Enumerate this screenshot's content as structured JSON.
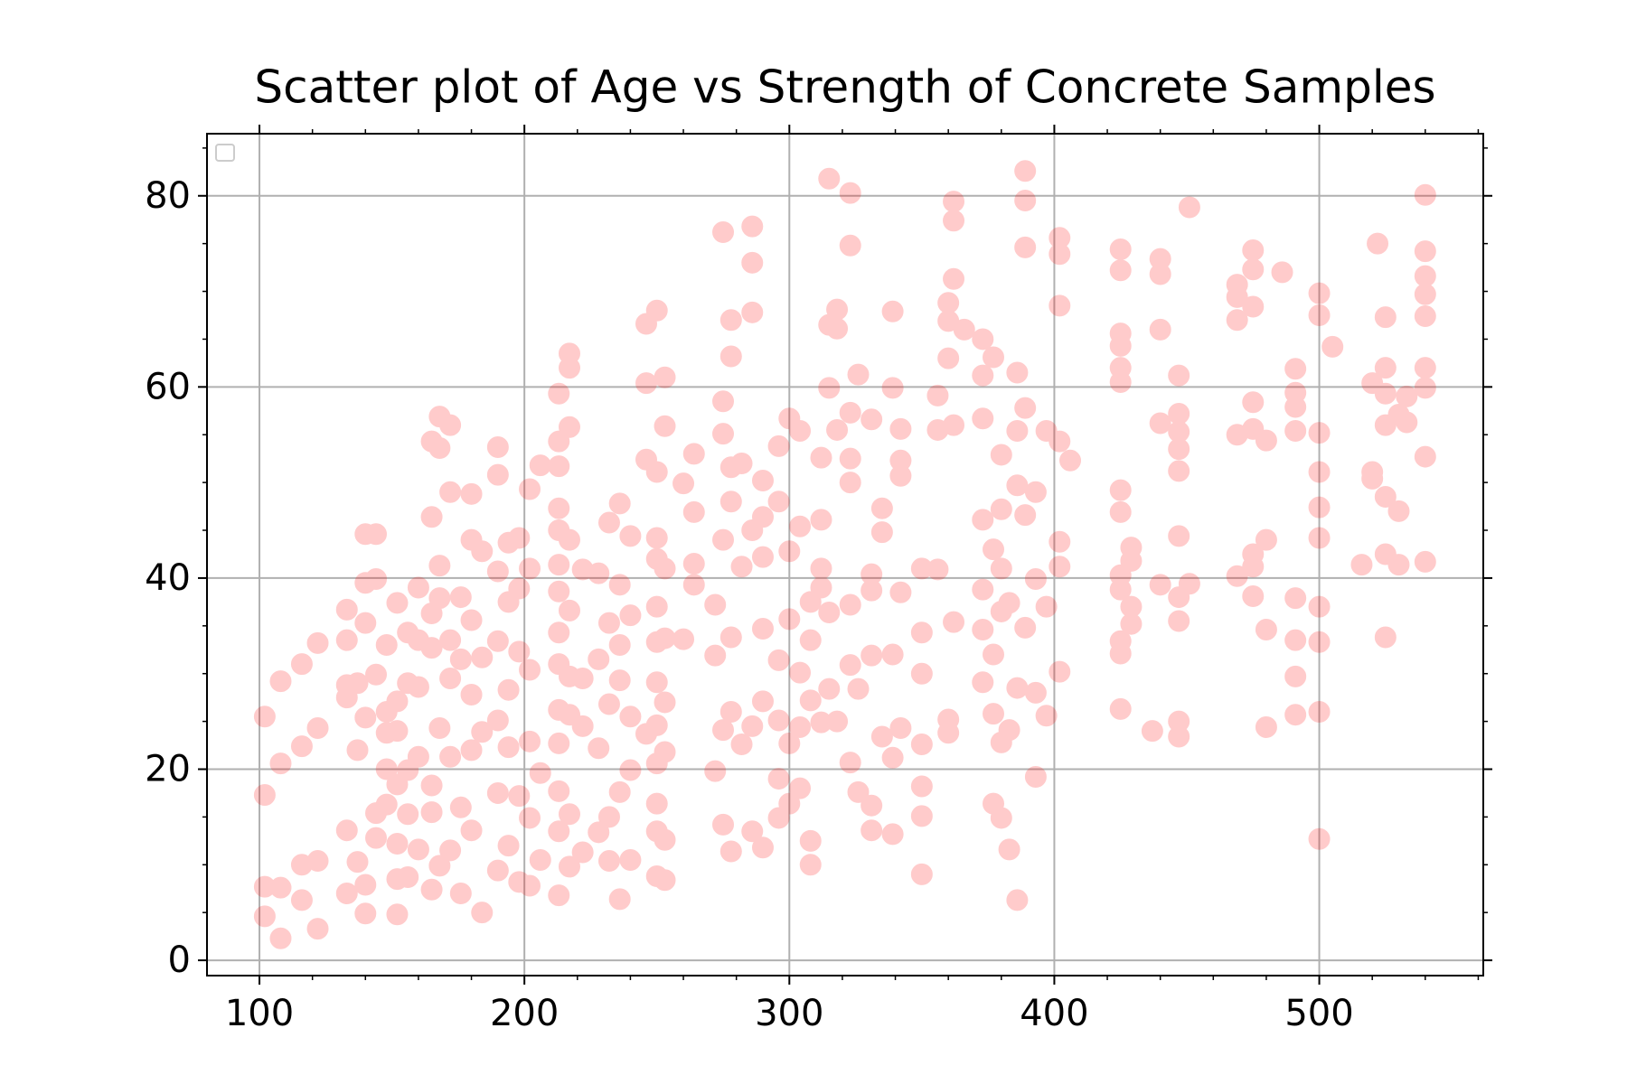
{
  "chart_data": {
    "type": "scatter",
    "title": "Scatter plot of Age vs Strength of Concrete Samples",
    "color": "#ff0000",
    "alpha": 0.2,
    "grid": true,
    "legend": "upper left",
    "xlim": [
      80.2,
      561.9
    ],
    "ylim": [
      -1.6,
      86.5
    ],
    "xticks": [
      100,
      200,
      300,
      400,
      500
    ],
    "yticks": [
      0,
      20,
      40,
      60,
      80
    ],
    "xminorticks": [
      120,
      140,
      160,
      180,
      220,
      240,
      260,
      280,
      320,
      340,
      360,
      380,
      420,
      440,
      460,
      480,
      520,
      540,
      560
    ],
    "yminorticks": [
      5,
      10,
      15,
      25,
      30,
      35,
      45,
      50,
      55,
      65,
      70,
      75,
      85
    ],
    "x": [
      102,
      102,
      102,
      102,
      108,
      108,
      108,
      108,
      116,
      116,
      116,
      116,
      122,
      122,
      122,
      122,
      133,
      133,
      133,
      133,
      133,
      133,
      137,
      137,
      137,
      140,
      140,
      140,
      140,
      140,
      140,
      144,
      144,
      144,
      144,
      144,
      148,
      148,
      148,
      148,
      148,
      152,
      152,
      152,
      152,
      152,
      152,
      152,
      156,
      156,
      156,
      156,
      156,
      160,
      160,
      160,
      160,
      160,
      165,
      165,
      165,
      165,
      165,
      165,
      165,
      168,
      168,
      168,
      168,
      168,
      168,
      172,
      172,
      172,
      172,
      172,
      172,
      176,
      176,
      176,
      176,
      180,
      180,
      180,
      180,
      180,
      180,
      184,
      184,
      184,
      184,
      190,
      190,
      190,
      190,
      190,
      190,
      190,
      194,
      194,
      194,
      194,
      194,
      198,
      198,
      198,
      198,
      198,
      202,
      202,
      202,
      202,
      202,
      202,
      206,
      206,
      206,
      213,
      213,
      213,
      213,
      213,
      213,
      213,
      213,
      213,
      213,
      213,
      213,
      213,
      213,
      217,
      217,
      217,
      217,
      217,
      217,
      217,
      217,
      217,
      222,
      222,
      222,
      222,
      228,
      228,
      228,
      228,
      232,
      232,
      232,
      232,
      232,
      236,
      236,
      236,
      236,
      236,
      236,
      240,
      240,
      240,
      240,
      240,
      246,
      246,
      246,
      246,
      250,
      250,
      250,
      250,
      250,
      250,
      250,
      250,
      250,
      250,
      250,
      250,
      253,
      253,
      253,
      253,
      253,
      253,
      253,
      253,
      260,
      260,
      264,
      264,
      264,
      264,
      272,
      272,
      272,
      275,
      275,
      275,
      275,
      275,
      275,
      278,
      278,
      278,
      278,
      278,
      278,
      278,
      282,
      282,
      282,
      286,
      286,
      286,
      286,
      286,
      286,
      290,
      290,
      290,
      290,
      290,
      290,
      296,
      296,
      296,
      296,
      296,
      296,
      300,
      300,
      300,
      300,
      300,
      304,
      304,
      304,
      304,
      304,
      308,
      308,
      308,
      308,
      308,
      312,
      312,
      312,
      312,
      312,
      315,
      315,
      315,
      315,
      315,
      318,
      318,
      318,
      318,
      323,
      323,
      323,
      323,
      323,
      323,
      323,
      323,
      326,
      326,
      326,
      331,
      331,
      331,
      331,
      331,
      331,
      335,
      335,
      335,
      339,
      339,
      339,
      339,
      339,
      342,
      342,
      342,
      342,
      342,
      350,
      350,
      350,
      350,
      350,
      350,
      350,
      356,
      356,
      356,
      360,
      360,
      360,
      360,
      360,
      362,
      362,
      362,
      362,
      362,
      366,
      373,
      373,
      373,
      373,
      373,
      373,
      373,
      377,
      377,
      377,
      377,
      377,
      380,
      380,
      380,
      380,
      380,
      380,
      383,
      383,
      383,
      386,
      386,
      386,
      386,
      386,
      389,
      389,
      389,
      389,
      389,
      389,
      393,
      393,
      393,
      393,
      397,
      397,
      397,
      402,
      402,
      402,
      402,
      402,
      402,
      402,
      406,
      425,
      425,
      425,
      425,
      425,
      425,
      425,
      425,
      425,
      425,
      425,
      425,
      425,
      429,
      429,
      429,
      429,
      437,
      440,
      440,
      440,
      440,
      440,
      447,
      447,
      447,
      447,
      447,
      447,
      447,
      447,
      447,
      447,
      451,
      451,
      469,
      469,
      469,
      469,
      469,
      475,
      475,
      475,
      475,
      475,
      475,
      475,
      475,
      480,
      480,
      480,
      480,
      486,
      491,
      491,
      491,
      491,
      491,
      491,
      491,
      491,
      500,
      500,
      500,
      500,
      500,
      500,
      500,
      500,
      500,
      500,
      505,
      516,
      520,
      520,
      520,
      522,
      525,
      525,
      525,
      525,
      525,
      525,
      525,
      530,
      530,
      530,
      533,
      533,
      540,
      540,
      540,
      540,
      540,
      540,
      540,
      540,
      540
    ],
    "values": [
      25.5,
      17.3,
      7.7,
      4.6,
      2.3,
      7.6,
      20.6,
      29.2,
      10.0,
      22.4,
      6.3,
      31.0,
      3.3,
      10.4,
      24.3,
      33.2,
      33.5,
      36.7,
      13.6,
      27.5,
      7.0,
      28.8,
      29.0,
      22.0,
      10.3,
      35.3,
      44.6,
      39.5,
      7.9,
      4.9,
      25.4,
      44.6,
      29.9,
      15.4,
      12.8,
      39.9,
      26.0,
      23.8,
      33.0,
      20.0,
      16.3,
      37.4,
      24.0,
      27.1,
      18.4,
      12.2,
      4.8,
      8.5,
      29.0,
      34.3,
      15.3,
      19.9,
      8.7,
      39.0,
      33.5,
      28.6,
      11.6,
      21.3,
      54.3,
      36.3,
      15.5,
      46.4,
      32.7,
      18.3,
      7.4,
      56.9,
      53.6,
      41.3,
      37.9,
      24.3,
      9.9,
      56.0,
      49.0,
      33.5,
      29.5,
      21.3,
      11.5,
      38.0,
      31.5,
      16.0,
      7.0,
      48.8,
      44.0,
      35.6,
      27.8,
      22.0,
      13.6,
      5.0,
      23.9,
      31.7,
      42.8,
      53.7,
      50.8,
      40.7,
      33.4,
      25.1,
      17.5,
      9.4,
      43.7,
      37.5,
      28.3,
      22.3,
      12.0,
      44.2,
      32.3,
      17.2,
      8.2,
      38.9,
      49.3,
      41.0,
      30.4,
      22.9,
      14.9,
      7.8,
      51.8,
      19.6,
      10.5,
      59.3,
      54.3,
      51.7,
      47.3,
      45.0,
      41.4,
      38.6,
      34.3,
      31.0,
      26.2,
      17.7,
      13.5,
      6.8,
      22.7,
      63.5,
      62.0,
      55.8,
      44.0,
      36.6,
      29.7,
      25.7,
      15.3,
      9.8,
      40.9,
      24.5,
      11.3,
      29.5,
      40.5,
      31.5,
      22.2,
      13.4,
      45.8,
      35.3,
      26.8,
      15.0,
      10.4,
      47.8,
      39.3,
      29.3,
      17.6,
      6.4,
      33.0,
      44.4,
      36.1,
      25.5,
      19.9,
      10.5,
      66.6,
      60.4,
      52.4,
      23.7,
      68.0,
      51.1,
      44.2,
      42.0,
      37.0,
      33.3,
      29.1,
      24.6,
      20.6,
      13.5,
      8.8,
      16.4,
      61.0,
      55.9,
      41.0,
      33.7,
      27.0,
      21.8,
      12.6,
      8.4,
      49.9,
      33.6,
      53.0,
      41.5,
      46.9,
      39.3,
      31.9,
      37.2,
      19.8,
      76.2,
      58.5,
      55.1,
      44.0,
      24.1,
      14.2,
      67.0,
      63.2,
      51.6,
      48.0,
      33.8,
      26.0,
      11.4,
      52.0,
      22.6,
      41.2,
      76.8,
      73.0,
      67.8,
      45.0,
      24.5,
      13.5,
      50.2,
      46.4,
      34.7,
      27.1,
      11.8,
      42.2,
      53.8,
      48.0,
      31.4,
      25.1,
      19.0,
      14.9,
      56.7,
      42.8,
      35.7,
      22.7,
      16.4,
      55.4,
      45.4,
      30.1,
      18.0,
      24.4,
      37.5,
      33.5,
      27.2,
      12.5,
      10.0,
      52.6,
      46.1,
      41.0,
      39.0,
      24.9,
      81.8,
      66.5,
      59.9,
      36.4,
      28.4,
      68.1,
      66.1,
      55.5,
      25.0,
      80.3,
      74.8,
      57.3,
      52.5,
      50.0,
      37.2,
      30.9,
      20.7,
      61.3,
      28.4,
      17.6,
      56.6,
      40.4,
      38.7,
      31.9,
      16.2,
      13.6,
      47.3,
      44.8,
      23.4,
      67.9,
      59.9,
      32.0,
      21.2,
      13.2,
      55.6,
      52.3,
      50.7,
      38.5,
      24.3,
      41.0,
      34.3,
      30.0,
      22.6,
      18.2,
      15.1,
      9.0,
      55.5,
      59.1,
      40.9,
      68.8,
      66.9,
      63.0,
      25.2,
      23.8,
      79.4,
      77.4,
      71.3,
      56.0,
      35.4,
      66.0,
      65.0,
      61.2,
      56.7,
      46.1,
      38.8,
      34.6,
      29.1,
      63.1,
      43.0,
      32.0,
      25.8,
      16.4,
      52.9,
      47.2,
      41.0,
      36.5,
      22.8,
      14.9,
      37.4,
      24.1,
      11.6,
      61.5,
      55.4,
      49.7,
      28.5,
      6.3,
      82.6,
      79.5,
      74.6,
      57.8,
      46.6,
      34.8,
      49.0,
      39.9,
      19.2,
      28.0,
      55.4,
      37.0,
      25.6,
      75.6,
      73.9,
      68.5,
      54.3,
      43.8,
      30.2,
      41.2,
      52.3,
      74.4,
      72.2,
      65.6,
      64.3,
      62.0,
      60.5,
      49.2,
      46.9,
      40.3,
      38.8,
      33.4,
      32.1,
      26.3,
      43.2,
      41.8,
      37.0,
      35.2,
      24.0,
      73.4,
      71.8,
      66.0,
      56.2,
      39.3,
      61.2,
      57.2,
      55.3,
      53.5,
      51.2,
      44.4,
      38.0,
      35.5,
      25.0,
      23.4,
      78.8,
      39.4,
      70.7,
      69.4,
      67.0,
      55.0,
      40.2,
      74.3,
      72.3,
      68.4,
      58.4,
      55.6,
      42.5,
      41.2,
      38.1,
      54.4,
      44.0,
      34.6,
      24.4,
      72.0,
      61.9,
      59.4,
      57.9,
      55.4,
      37.9,
      33.5,
      29.7,
      25.7,
      69.8,
      67.5,
      55.2,
      51.1,
      47.4,
      44.2,
      37.0,
      33.3,
      26.0,
      12.7,
      64.2,
      41.4,
      60.4,
      51.1,
      50.4,
      75.0,
      67.3,
      62.0,
      59.3,
      56.0,
      48.5,
      42.5,
      33.8,
      57.1,
      47.0,
      41.4,
      59.0,
      56.3,
      80.1,
      74.2,
      71.6,
      69.7,
      67.4,
      62.0,
      59.9,
      52.7,
      41.7
    ]
  }
}
